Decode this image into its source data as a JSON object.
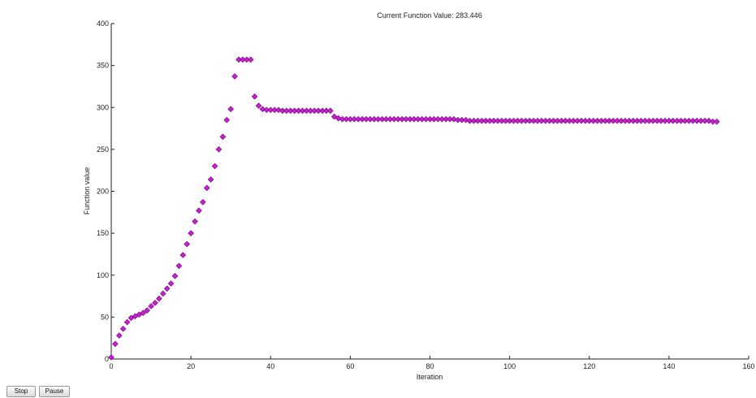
{
  "colors": {
    "marker": "#c81fd2",
    "marker_edge": "#6a0a72",
    "axis": "#222222"
  },
  "buttons": {
    "stop_label": "Stop",
    "pause_label": "Pause"
  },
  "chart_data": {
    "type": "scatter",
    "marker": "diamond",
    "title": "Current Function Value: 283.446",
    "xlabel": "Iteration",
    "ylabel": "Function value",
    "xlim": [
      0,
      160
    ],
    "ylim": [
      0,
      400
    ],
    "xticks": [
      0,
      20,
      40,
      60,
      80,
      100,
      120,
      140,
      160
    ],
    "yticks": [
      0,
      50,
      100,
      150,
      200,
      250,
      300,
      350,
      400
    ],
    "grid": false,
    "series": [
      {
        "x": [
          0,
          1,
          2,
          3,
          4,
          5,
          6,
          7,
          8,
          9,
          10,
          11,
          12,
          13,
          14,
          15,
          16,
          17,
          18,
          19,
          20,
          21,
          22,
          23,
          24,
          25,
          26,
          27,
          28,
          29,
          30,
          31,
          32,
          33,
          34,
          35,
          36,
          37,
          38,
          39,
          40,
          41,
          42,
          43,
          44,
          45,
          46,
          47,
          48,
          49,
          50,
          51,
          52,
          53,
          54,
          55,
          56,
          57,
          58,
          59,
          60,
          61,
          62,
          63,
          64,
          65,
          66,
          67,
          68,
          69,
          70,
          71,
          72,
          73,
          74,
          75,
          76,
          77,
          78,
          79,
          80,
          81,
          82,
          83,
          84,
          85,
          86,
          87,
          88,
          89,
          90,
          91,
          92,
          93,
          94,
          95,
          96,
          97,
          98,
          99,
          100,
          101,
          102,
          103,
          104,
          105,
          106,
          107,
          108,
          109,
          110,
          111,
          112,
          113,
          114,
          115,
          116,
          117,
          118,
          119,
          120,
          121,
          122,
          123,
          124,
          125,
          126,
          127,
          128,
          129,
          130,
          131,
          132,
          133,
          134,
          135,
          136,
          137,
          138,
          139,
          140,
          141,
          142,
          143,
          144,
          145,
          146,
          147,
          148,
          149,
          150,
          151,
          152
        ],
        "y": [
          2,
          18,
          28,
          36,
          44,
          49,
          51,
          53,
          55,
          58,
          63,
          67,
          72,
          78,
          84,
          90,
          99,
          111,
          124,
          137,
          150,
          164,
          177,
          187,
          204,
          214,
          230,
          250,
          265,
          285,
          298,
          337,
          357,
          357,
          357,
          357,
          313,
          302,
          298,
          297,
          297,
          297,
          297,
          296,
          296,
          296,
          296,
          296,
          296,
          296,
          296,
          296,
          296,
          296,
          296,
          296,
          289,
          287,
          286,
          286,
          286,
          286,
          286,
          286,
          286,
          286,
          286,
          286,
          286,
          286,
          286,
          286,
          286,
          286,
          286,
          286,
          286,
          286,
          286,
          286,
          286,
          286,
          286,
          286,
          286,
          286,
          286,
          285,
          285,
          285,
          284,
          284,
          284,
          284,
          284,
          284,
          284,
          284,
          284,
          284,
          284,
          284,
          284,
          284,
          284,
          284,
          284,
          284,
          284,
          284,
          284,
          284,
          284,
          284,
          284,
          284,
          284,
          284,
          284,
          284,
          284,
          284,
          284,
          284,
          284,
          284,
          284,
          284,
          284,
          284,
          284,
          284,
          284,
          284,
          284,
          284,
          284,
          284,
          284,
          284,
          284,
          284,
          284,
          284,
          284,
          284,
          284,
          284,
          284,
          284,
          284,
          283,
          283
        ]
      }
    ]
  }
}
